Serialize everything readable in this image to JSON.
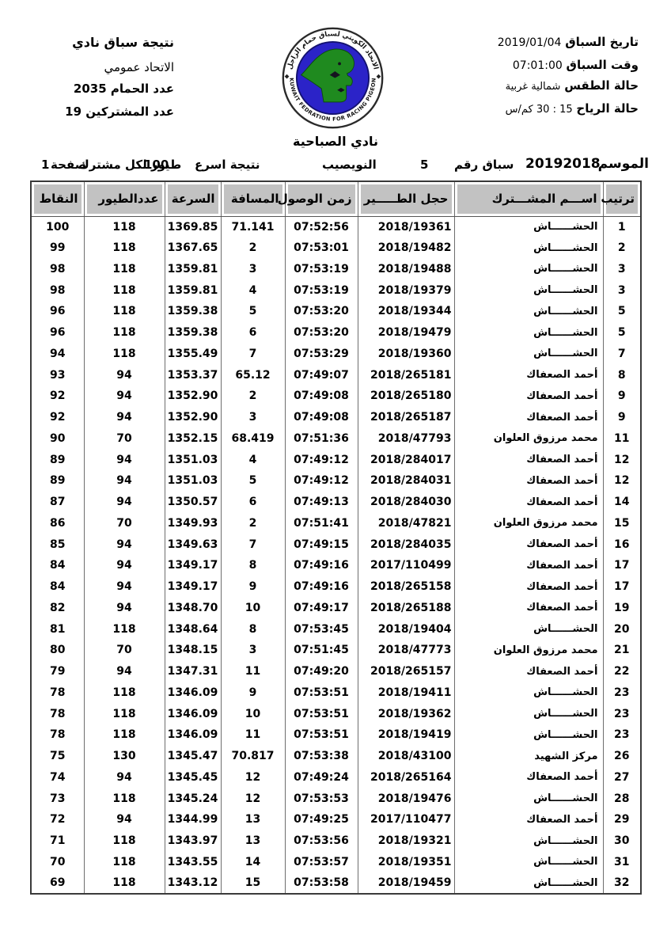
{
  "meta_left": {
    "title": "نتيجة سباق نادي",
    "federation": "الاتحاد عمومي",
    "pigeons_label": "عدد الحمام",
    "pigeons_value": "2035",
    "participants_label": "عدد المشتركين",
    "participants_value": "19"
  },
  "meta_right": {
    "date_label": "تاريخ السباق",
    "date_value": "2019/01/04",
    "time_label": "وقت السباق",
    "time_value": "07:01:00",
    "weather_label": "حالة الطقس",
    "weather_value": "شمالية غربية",
    "wind_label": "حالة الرياح",
    "wind_value": "15 : 30 كم/س"
  },
  "logo": {
    "arc_top": "الاتحاد الكويتي لسباق حمام الزاجل",
    "arc_bottom": "KUWAIT FEDRATION FOR RACING PIGEON",
    "disc_color": "#2b23c8",
    "map_color": "#1f8a1f"
  },
  "club_name": "نادي الصباحية",
  "season_line": {
    "season_label": "الموسم",
    "season_value": "20192018",
    "race_label": "سباق رقم",
    "race_value": "5",
    "location": "النويصيب",
    "result_label": "نتيجة اسرع",
    "result_value": "100",
    "per_participant": "طيور لكل مشترك",
    "page_label": "صفحة",
    "page_value": "1"
  },
  "table": {
    "headers": {
      "rank": "ترتيب",
      "name": "اســـم المشـــترك",
      "ring": "حجل الطـــــير",
      "time": "زمن الوصول",
      "distance": "المسافة",
      "speed": "السرعة",
      "birds": "عددالطيور",
      "points": "النقاط"
    },
    "rows": [
      {
        "rank": "1",
        "name": "الحشــــــاش",
        "ring": "2018/19361",
        "time": "07:52:56",
        "distance": "71.141",
        "speed": "1369.85",
        "birds": "118",
        "points": "100"
      },
      {
        "rank": "2",
        "name": "الحشــــــاش",
        "ring": "2018/19482",
        "time": "07:53:01",
        "distance": "2",
        "speed": "1367.65",
        "birds": "118",
        "points": "99"
      },
      {
        "rank": "3",
        "name": "الحشــــــاش",
        "ring": "2018/19488",
        "time": "07:53:19",
        "distance": "3",
        "speed": "1359.81",
        "birds": "118",
        "points": "98"
      },
      {
        "rank": "3",
        "name": "الحشــــــاش",
        "ring": "2018/19379",
        "time": "07:53:19",
        "distance": "4",
        "speed": "1359.81",
        "birds": "118",
        "points": "98"
      },
      {
        "rank": "5",
        "name": "الحشــــــاش",
        "ring": "2018/19344",
        "time": "07:53:20",
        "distance": "5",
        "speed": "1359.38",
        "birds": "118",
        "points": "96"
      },
      {
        "rank": "5",
        "name": "الحشــــــاش",
        "ring": "2018/19479",
        "time": "07:53:20",
        "distance": "6",
        "speed": "1359.38",
        "birds": "118",
        "points": "96"
      },
      {
        "rank": "7",
        "name": "الحشــــــاش",
        "ring": "2018/19360",
        "time": "07:53:29",
        "distance": "7",
        "speed": "1355.49",
        "birds": "118",
        "points": "94"
      },
      {
        "rank": "8",
        "name": "أحمد الصعفاك",
        "ring": "2018/265181",
        "time": "07:49:07",
        "distance": "65.12",
        "speed": "1353.37",
        "birds": "94",
        "points": "93"
      },
      {
        "rank": "9",
        "name": "أحمد الصعفاك",
        "ring": "2018/265180",
        "time": "07:49:08",
        "distance": "2",
        "speed": "1352.90",
        "birds": "94",
        "points": "92"
      },
      {
        "rank": "9",
        "name": "أحمد الصعفاك",
        "ring": "2018/265187",
        "time": "07:49:08",
        "distance": "3",
        "speed": "1352.90",
        "birds": "94",
        "points": "92"
      },
      {
        "rank": "11",
        "name": "محمد مرزوق العلوان",
        "ring": "2018/47793",
        "time": "07:51:36",
        "distance": "68.419",
        "speed": "1352.15",
        "birds": "70",
        "points": "90"
      },
      {
        "rank": "12",
        "name": "أحمد الصعفاك",
        "ring": "2018/284017",
        "time": "07:49:12",
        "distance": "4",
        "speed": "1351.03",
        "birds": "94",
        "points": "89"
      },
      {
        "rank": "12",
        "name": "أحمد الصعفاك",
        "ring": "2018/284031",
        "time": "07:49:12",
        "distance": "5",
        "speed": "1351.03",
        "birds": "94",
        "points": "89"
      },
      {
        "rank": "14",
        "name": "أحمد الصعفاك",
        "ring": "2018/284030",
        "time": "07:49:13",
        "distance": "6",
        "speed": "1350.57",
        "birds": "94",
        "points": "87"
      },
      {
        "rank": "15",
        "name": "محمد مرزوق العلوان",
        "ring": "2018/47821",
        "time": "07:51:41",
        "distance": "2",
        "speed": "1349.93",
        "birds": "70",
        "points": "86"
      },
      {
        "rank": "16",
        "name": "أحمد الصعفاك",
        "ring": "2018/284035",
        "time": "07:49:15",
        "distance": "7",
        "speed": "1349.63",
        "birds": "94",
        "points": "85"
      },
      {
        "rank": "17",
        "name": "أحمد الصعفاك",
        "ring": "2017/110499",
        "time": "07:49:16",
        "distance": "8",
        "speed": "1349.17",
        "birds": "94",
        "points": "84"
      },
      {
        "rank": "17",
        "name": "أحمد الصعفاك",
        "ring": "2018/265158",
        "time": "07:49:16",
        "distance": "9",
        "speed": "1349.17",
        "birds": "94",
        "points": "84"
      },
      {
        "rank": "19",
        "name": "أحمد الصعفاك",
        "ring": "2018/265188",
        "time": "07:49:17",
        "distance": "10",
        "speed": "1348.70",
        "birds": "94",
        "points": "82"
      },
      {
        "rank": "20",
        "name": "الحشــــــاش",
        "ring": "2018/19404",
        "time": "07:53:45",
        "distance": "8",
        "speed": "1348.64",
        "birds": "118",
        "points": "81"
      },
      {
        "rank": "21",
        "name": "محمد مرزوق العلوان",
        "ring": "2018/47773",
        "time": "07:51:45",
        "distance": "3",
        "speed": "1348.15",
        "birds": "70",
        "points": "80"
      },
      {
        "rank": "22",
        "name": "أحمد الصعفاك",
        "ring": "2018/265157",
        "time": "07:49:20",
        "distance": "11",
        "speed": "1347.31",
        "birds": "94",
        "points": "79"
      },
      {
        "rank": "23",
        "name": "الحشــــــاش",
        "ring": "2018/19411",
        "time": "07:53:51",
        "distance": "9",
        "speed": "1346.09",
        "birds": "118",
        "points": "78"
      },
      {
        "rank": "23",
        "name": "الحشــــــاش",
        "ring": "2018/19362",
        "time": "07:53:51",
        "distance": "10",
        "speed": "1346.09",
        "birds": "118",
        "points": "78"
      },
      {
        "rank": "23",
        "name": "الحشــــــاش",
        "ring": "2018/19419",
        "time": "07:53:51",
        "distance": "11",
        "speed": "1346.09",
        "birds": "118",
        "points": "78"
      },
      {
        "rank": "26",
        "name": "مركز الشهيد",
        "ring": "2018/43100",
        "time": "07:53:38",
        "distance": "70.817",
        "speed": "1345.47",
        "birds": "130",
        "points": "75"
      },
      {
        "rank": "27",
        "name": "أحمد الصعفاك",
        "ring": "2018/265164",
        "time": "07:49:24",
        "distance": "12",
        "speed": "1345.45",
        "birds": "94",
        "points": "74"
      },
      {
        "rank": "28",
        "name": "الحشــــــاش",
        "ring": "2018/19476",
        "time": "07:53:53",
        "distance": "12",
        "speed": "1345.24",
        "birds": "118",
        "points": "73"
      },
      {
        "rank": "29",
        "name": "أحمد الصعفاك",
        "ring": "2017/110477",
        "time": "07:49:25",
        "distance": "13",
        "speed": "1344.99",
        "birds": "94",
        "points": "72"
      },
      {
        "rank": "30",
        "name": "الحشــــــاش",
        "ring": "2018/19321",
        "time": "07:53:56",
        "distance": "13",
        "speed": "1343.97",
        "birds": "118",
        "points": "71"
      },
      {
        "rank": "31",
        "name": "الحشــــــاش",
        "ring": "2018/19351",
        "time": "07:53:57",
        "distance": "14",
        "speed": "1343.55",
        "birds": "118",
        "points": "70"
      },
      {
        "rank": "32",
        "name": "الحشــــــاش",
        "ring": "2018/19459",
        "time": "07:53:58",
        "distance": "15",
        "speed": "1343.12",
        "birds": "118",
        "points": "69"
      }
    ]
  }
}
